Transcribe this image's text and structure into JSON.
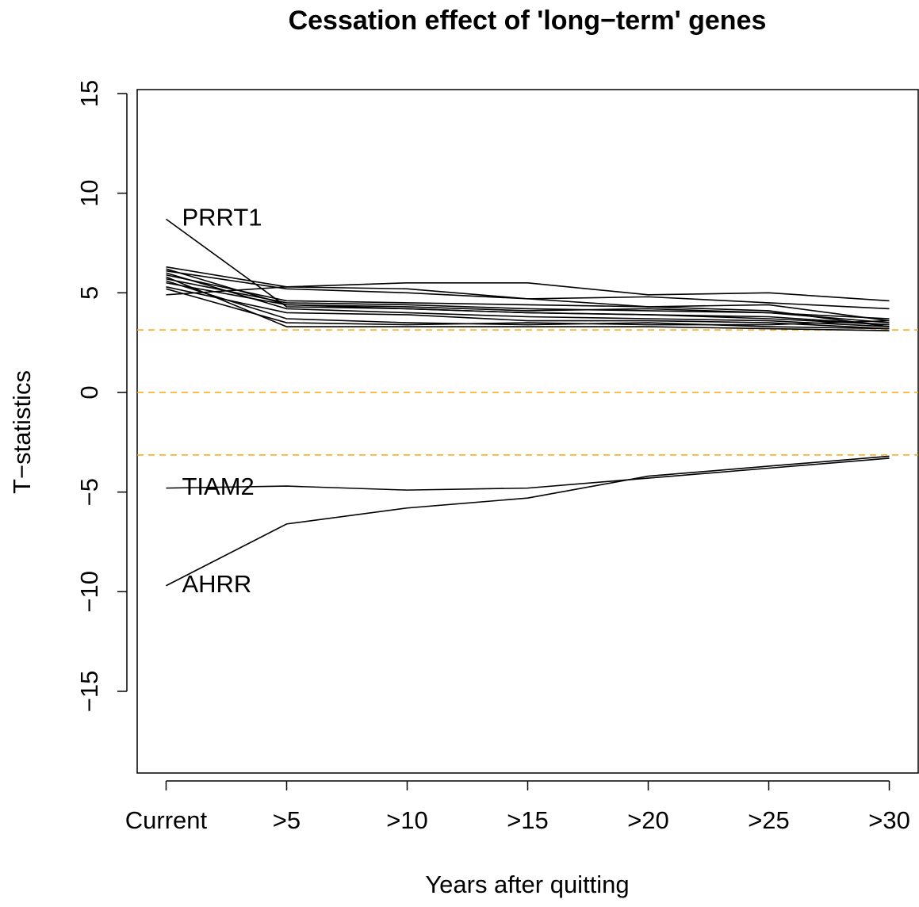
{
  "chart_data": {
    "type": "line",
    "title": "Cessation effect of 'long−term' genes",
    "x_label": "Years after quitting",
    "y_label": "T−statistics",
    "categories": [
      "Current",
      ">5",
      ">10",
      ">15",
      ">20",
      ">25",
      ">30"
    ],
    "ylim": [
      -19.1,
      15.2
    ],
    "yticks": [
      {
        "value": -15,
        "label": "−15"
      },
      {
        "value": -10,
        "label": "−10"
      },
      {
        "value": -5,
        "label": "−5"
      },
      0,
      5,
      10,
      15
    ],
    "hlines": [
      3.14,
      0,
      -3.14
    ],
    "hline_color": "#ffa500",
    "line_color": "#000000",
    "series": [
      {
        "name": "PRRT1",
        "values": [
          8.7,
          4.3,
          4.2,
          4.0,
          3.9,
          3.7,
          3.4
        ]
      },
      {
        "name": "TIAM2",
        "values": [
          -4.8,
          -4.7,
          -4.9,
          -4.8,
          -4.3,
          -3.8,
          -3.3
        ]
      },
      {
        "name": "AHRR",
        "values": [
          -9.7,
          -6.6,
          -5.8,
          -5.3,
          -4.2,
          -3.7,
          -3.2
        ]
      },
      {
        "values": [
          6.3,
          5.3,
          5.5,
          5.5,
          4.9,
          5.0,
          4.6
        ]
      },
      {
        "values": [
          6.1,
          5.2,
          5.0,
          4.7,
          4.8,
          4.5,
          4.2
        ]
      },
      {
        "values": [
          5.9,
          4.6,
          4.5,
          4.4,
          4.3,
          4.4,
          3.6
        ]
      },
      {
        "values": [
          5.7,
          4.5,
          4.4,
          4.2,
          4.1,
          4.0,
          3.5
        ]
      },
      {
        "values": [
          5.5,
          4.4,
          4.2,
          4.0,
          3.9,
          3.8,
          3.4
        ]
      },
      {
        "values": [
          6.0,
          4.2,
          4.0,
          3.8,
          3.7,
          3.6,
          3.3
        ]
      },
      {
        "values": [
          5.3,
          4.0,
          3.9,
          3.6,
          3.6,
          3.5,
          3.2
        ]
      },
      {
        "values": [
          5.6,
          3.7,
          3.5,
          3.4,
          3.5,
          3.3,
          3.2
        ]
      },
      {
        "values": [
          5.8,
          3.3,
          3.3,
          3.3,
          3.3,
          3.2,
          3.1
        ]
      },
      {
        "values": [
          4.9,
          5.3,
          5.2,
          4.7,
          4.3,
          4.1,
          3.3
        ]
      },
      {
        "values": [
          5.2,
          3.5,
          3.4,
          3.5,
          3.4,
          3.4,
          3.6
        ]
      },
      {
        "values": [
          6.2,
          4.4,
          4.3,
          4.1,
          4.2,
          4.0,
          3.7
        ]
      }
    ]
  }
}
